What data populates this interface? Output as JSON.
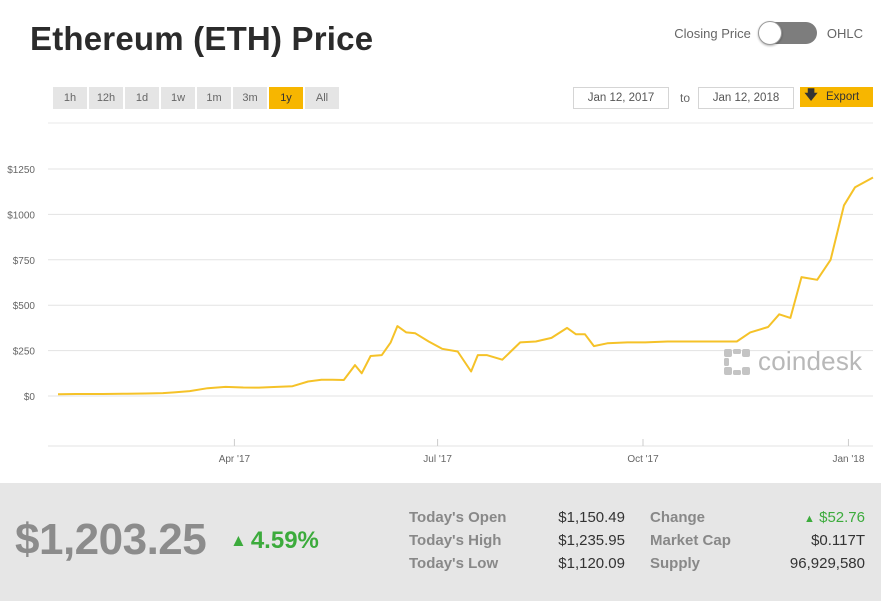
{
  "header": {
    "title": "Ethereum (ETH) Price",
    "toggle_left_label": "Closing Price",
    "toggle_right_label": "OHLC"
  },
  "ranges": [
    "1h",
    "12h",
    "1d",
    "1w",
    "1m",
    "3m",
    "1y",
    "All"
  ],
  "active_range": "1y",
  "dates": {
    "from": "Jan 12, 2017",
    "separator": "to",
    "to": "Jan 12, 2018"
  },
  "export_label": "Export",
  "watermark": "coindesk",
  "colors": {
    "accent": "#f7b600",
    "line": "#f5c228",
    "positive": "#3cab3c",
    "gray": "#8c8c8c"
  },
  "chart_data": {
    "type": "line",
    "title": "",
    "xlabel": "",
    "ylabel": "",
    "ylim": [
      0,
      1250
    ],
    "yticks": [
      0,
      250,
      500,
      750,
      1000,
      1250
    ],
    "ytick_labels": [
      "$0",
      "$250",
      "$500",
      "$750",
      "$1000",
      "$1250"
    ],
    "xticks": [
      "2017-04-01",
      "2017-07-01",
      "2017-10-01",
      "2018-01-01"
    ],
    "xtick_labels": [
      "Apr '17",
      "Jul '17",
      "Oct '17",
      "Jan '18"
    ],
    "xlim": [
      "2017-01-12",
      "2018-01-12"
    ],
    "grid": true,
    "series": [
      {
        "x": [
          "2017-01-12",
          "2017-01-20",
          "2017-02-01",
          "2017-02-10",
          "2017-02-20",
          "2017-02-28",
          "2017-03-05",
          "2017-03-12",
          "2017-03-20",
          "2017-03-28",
          "2017-04-05",
          "2017-04-12",
          "2017-04-20",
          "2017-04-27",
          "2017-05-04",
          "2017-05-10",
          "2017-05-15",
          "2017-05-20",
          "2017-05-25",
          "2017-05-28",
          "2017-06-01",
          "2017-06-06",
          "2017-06-10",
          "2017-06-13",
          "2017-06-17",
          "2017-06-21",
          "2017-06-27",
          "2017-07-03",
          "2017-07-10",
          "2017-07-16",
          "2017-07-19",
          "2017-07-23",
          "2017-07-30",
          "2017-08-07",
          "2017-08-14",
          "2017-08-21",
          "2017-08-28",
          "2017-09-01",
          "2017-09-05",
          "2017-09-09",
          "2017-09-15",
          "2017-09-24",
          "2017-10-02",
          "2017-10-12",
          "2017-10-20",
          "2017-10-28",
          "2017-11-05",
          "2017-11-12",
          "2017-11-18",
          "2017-11-26",
          "2017-12-01",
          "2017-12-06",
          "2017-12-11",
          "2017-12-18",
          "2017-12-24",
          "2017-12-30",
          "2018-01-04",
          "2018-01-12"
        ],
        "values": [
          10,
          11,
          11,
          12,
          14,
          16,
          20,
          27,
          43,
          50,
          47,
          46,
          50,
          54,
          80,
          90,
          90,
          88,
          170,
          125,
          220,
          225,
          295,
          385,
          350,
          345,
          300,
          260,
          245,
          135,
          225,
          225,
          200,
          295,
          300,
          320,
          375,
          340,
          340,
          275,
          290,
          295,
          295,
          300,
          300,
          300,
          300,
          300,
          350,
          380,
          450,
          430,
          655,
          640,
          750,
          1050,
          1150,
          1203
        ]
      }
    ]
  },
  "stats": {
    "price": "$1,203.25",
    "change_pct": "4.59%",
    "rows": [
      {
        "label": "Today's Open",
        "value": "$1,150.49",
        "label2": "Change",
        "value2": "$52.76"
      },
      {
        "label": "Today's High",
        "value": "$1,235.95",
        "label2": "Market Cap",
        "value2": "$0.117T"
      },
      {
        "label": "Today's Low",
        "value": "$1,120.09",
        "label2": "Supply",
        "value2": "96,929,580"
      }
    ]
  }
}
